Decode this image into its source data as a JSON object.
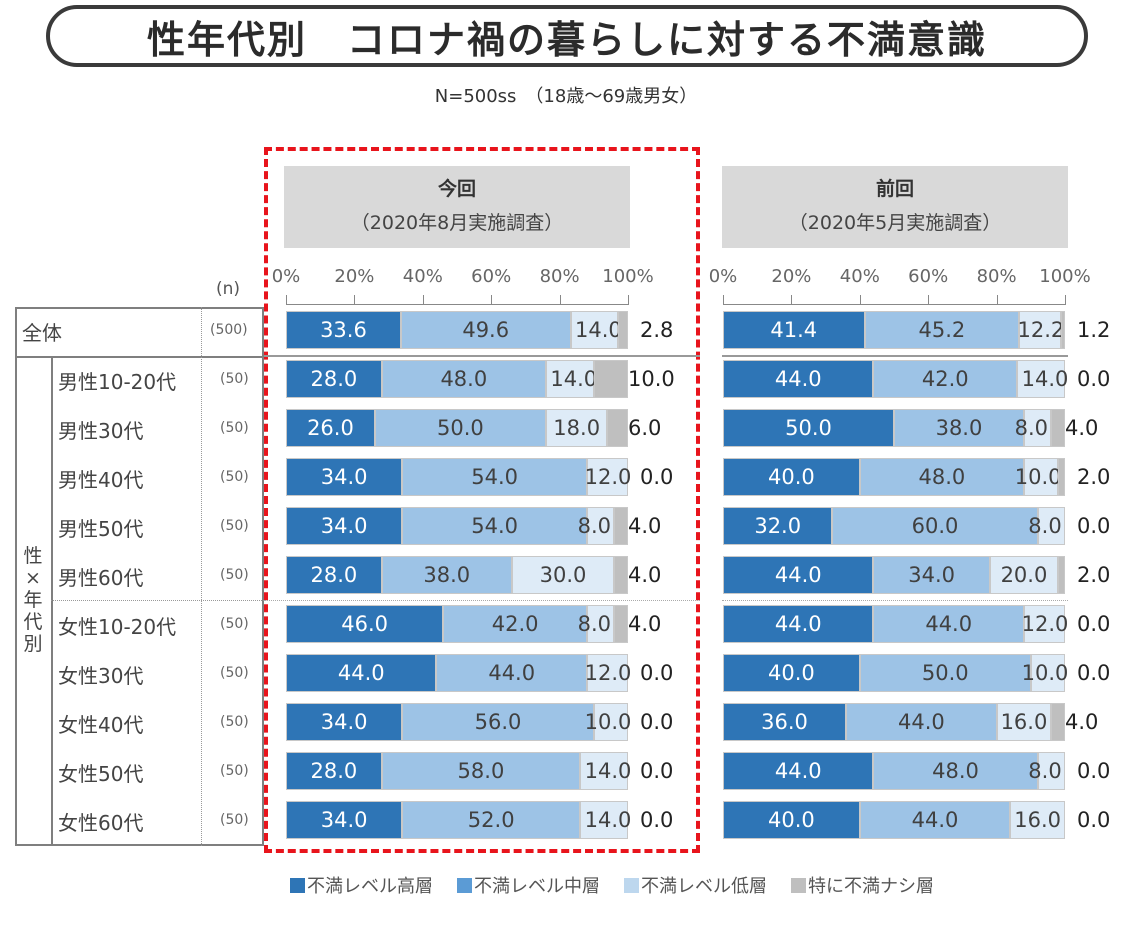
{
  "title": "性年代別　コロナ禍の暮らしに対する不満意識",
  "subtitle": "N=500ss　（18歳～69歳男女）",
  "n_header": "(n)",
  "group_label": "性×年代別",
  "colors": {
    "high": "#2e75b6",
    "mid": "#9dc3e6",
    "low": "#deebf7",
    "none": "#bfbfbf",
    "highlight_frame": "#e8141c"
  },
  "legend": [
    {
      "key": "high",
      "label": "不満レベル高層",
      "color": "#2e75b6"
    },
    {
      "key": "mid",
      "label": "不満レベル中層",
      "color": "#5b9bd5"
    },
    {
      "key": "low",
      "label": "不満レベル低層",
      "color": "#bdd7ee"
    },
    {
      "key": "none",
      "label": "特に不満ナシ層",
      "color": "#bfbfbf"
    }
  ],
  "rows": [
    {
      "label": "全体",
      "n": "(500)"
    },
    {
      "label": "男性10-20代",
      "n": "(50)"
    },
    {
      "label": "男性30代",
      "n": "(50)"
    },
    {
      "label": "男性40代",
      "n": "(50)"
    },
    {
      "label": "男性50代",
      "n": "(50)"
    },
    {
      "label": "男性60代",
      "n": "(50)"
    },
    {
      "label": "女性10-20代",
      "n": "(50)"
    },
    {
      "label": "女性30代",
      "n": "(50)"
    },
    {
      "label": "女性40代",
      "n": "(50)"
    },
    {
      "label": "女性50代",
      "n": "(50)"
    },
    {
      "label": "女性60代",
      "n": "(50)"
    }
  ],
  "chart_data": [
    {
      "type": "bar",
      "orientation": "horizontal-stacked-100",
      "title": "今回",
      "subtitle": "（2020年8月実施調査）",
      "highlighted": true,
      "xlim": [
        0,
        100
      ],
      "xticks": [
        "0%",
        "20%",
        "40%",
        "60%",
        "80%",
        "100%"
      ],
      "categories": [
        "全体",
        "男性10-20代",
        "男性30代",
        "男性40代",
        "男性50代",
        "男性60代",
        "女性10-20代",
        "女性30代",
        "女性40代",
        "女性50代",
        "女性60代"
      ],
      "series": [
        {
          "name": "不満レベル高層",
          "values": [
            33.6,
            28.0,
            26.0,
            34.0,
            34.0,
            28.0,
            46.0,
            44.0,
            34.0,
            28.0,
            34.0
          ]
        },
        {
          "name": "不満レベル中層",
          "values": [
            49.6,
            48.0,
            50.0,
            54.0,
            54.0,
            38.0,
            42.0,
            44.0,
            56.0,
            58.0,
            52.0
          ]
        },
        {
          "name": "不満レベル低層",
          "values": [
            14.0,
            14.0,
            18.0,
            12.0,
            8.0,
            30.0,
            8.0,
            12.0,
            10.0,
            14.0,
            14.0
          ]
        },
        {
          "name": "特に不満ナシ層",
          "values": [
            2.8,
            10.0,
            6.0,
            0.0,
            4.0,
            4.0,
            4.0,
            0.0,
            0.0,
            0.0,
            0.0
          ]
        }
      ]
    },
    {
      "type": "bar",
      "orientation": "horizontal-stacked-100",
      "title": "前回",
      "subtitle": "（2020年5月実施調査）",
      "highlighted": false,
      "xlim": [
        0,
        100
      ],
      "xticks": [
        "0%",
        "20%",
        "40%",
        "60%",
        "80%",
        "100%"
      ],
      "categories": [
        "全体",
        "男性10-20代",
        "男性30代",
        "男性40代",
        "男性50代",
        "男性60代",
        "女性10-20代",
        "女性30代",
        "女性40代",
        "女性50代",
        "女性60代"
      ],
      "series": [
        {
          "name": "不満レベル高層",
          "values": [
            41.4,
            44.0,
            50.0,
            40.0,
            32.0,
            44.0,
            44.0,
            40.0,
            36.0,
            44.0,
            40.0
          ]
        },
        {
          "name": "不満レベル中層",
          "values": [
            45.2,
            42.0,
            38.0,
            48.0,
            60.0,
            34.0,
            44.0,
            50.0,
            44.0,
            48.0,
            44.0
          ]
        },
        {
          "name": "不満レベル低層",
          "values": [
            12.2,
            14.0,
            8.0,
            10.0,
            8.0,
            20.0,
            12.0,
            10.0,
            16.0,
            8.0,
            16.0
          ]
        },
        {
          "name": "特に不満ナシ層",
          "values": [
            1.2,
            0.0,
            4.0,
            2.0,
            0.0,
            2.0,
            0.0,
            0.0,
            4.0,
            0.0,
            0.0
          ]
        }
      ]
    }
  ]
}
